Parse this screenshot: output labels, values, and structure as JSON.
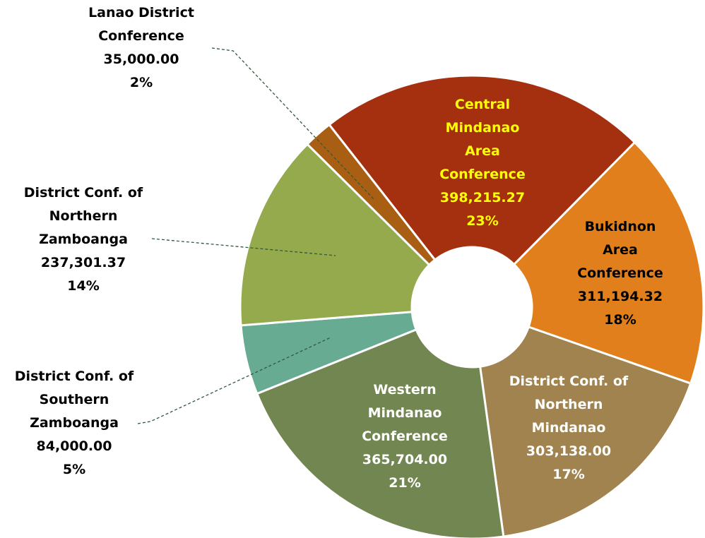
{
  "chart_data": {
    "type": "donut",
    "categories": [
      "Central Mindanao Area Conference",
      "Bukidnon Area Conference",
      "District Conf. of Northern Mindanao",
      "Western Mindanao Conference",
      "District Conf. of Southern Zamboanga",
      "District Conf. of Northern Zamboanga",
      "Lanao District Conference"
    ],
    "values": [
      398215.27,
      311194.32,
      303138.0,
      365704.0,
      84000.0,
      237301.37,
      35000.0
    ],
    "value_labels": [
      "398,215.27",
      "311,194.32",
      "303,138.00",
      "365,704.00",
      "84,000.00",
      "237,301.37",
      "35,000.00"
    ],
    "percents": [
      23,
      18,
      17,
      21,
      5,
      14,
      2
    ],
    "percent_labels": [
      "23%",
      "18%",
      "17%",
      "21%",
      "5%",
      "14%",
      "2%"
    ],
    "colors": [
      "#a5300f",
      "#e07f1b",
      "#a0834f",
      "#728652",
      "#68ab93",
      "#95a94d",
      "#a85f14"
    ],
    "label_colors": [
      "#ffff00",
      "#000000",
      "#ffffff",
      "#ffffff",
      "#000000",
      "#000000",
      "#000000"
    ]
  }
}
